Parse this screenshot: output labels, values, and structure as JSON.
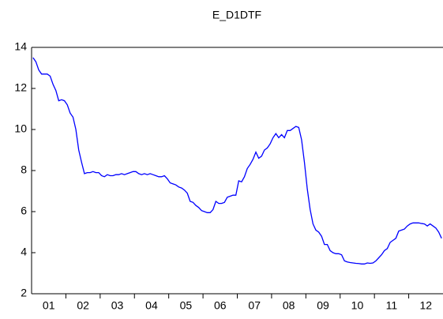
{
  "chart_data": {
    "type": "line",
    "title": "E_D1DTF",
    "categories": [
      null,
      null,
      null,
      null,
      null,
      null,
      "01",
      null,
      null,
      null,
      null,
      null,
      null,
      null,
      null,
      null,
      null,
      null,
      "02",
      null,
      null,
      null,
      null,
      null,
      null,
      null,
      null,
      null,
      null,
      null,
      "03",
      null,
      null,
      null,
      null,
      null,
      null,
      null,
      null,
      null,
      null,
      null,
      "04",
      null,
      null,
      null,
      null,
      null,
      null,
      null,
      null,
      null,
      null,
      null,
      "05",
      null,
      null,
      null,
      null,
      null,
      null,
      null,
      null,
      null,
      null,
      null,
      "06",
      null,
      null,
      null,
      null,
      null,
      null,
      null,
      null,
      null,
      null,
      null,
      "07",
      null,
      null,
      null,
      null,
      null,
      null,
      null,
      null,
      null,
      null,
      null,
      "08",
      null,
      null,
      null,
      null,
      null,
      null,
      null,
      null,
      null,
      null,
      null,
      "09",
      null,
      null,
      null,
      null,
      null,
      null,
      null,
      null,
      null,
      null,
      null,
      "10",
      null,
      null,
      null,
      null,
      null,
      null,
      null,
      null,
      null,
      null,
      null,
      "11",
      null,
      null,
      null,
      null,
      null,
      null,
      null,
      null,
      null,
      null,
      null,
      "12",
      null,
      null,
      null,
      null,
      null
    ],
    "values": [
      13.5,
      13.3,
      12.9,
      12.7,
      12.7,
      12.7,
      12.6,
      12.2,
      11.9,
      11.4,
      11.45,
      11.4,
      11.2,
      10.8,
      10.6,
      10.0,
      9.0,
      8.4,
      7.85,
      7.9,
      7.9,
      7.95,
      7.9,
      7.9,
      7.75,
      7.7,
      7.8,
      7.75,
      7.75,
      7.8,
      7.8,
      7.85,
      7.8,
      7.85,
      7.9,
      7.95,
      7.95,
      7.85,
      7.8,
      7.85,
      7.8,
      7.85,
      7.8,
      7.75,
      7.7,
      7.7,
      7.75,
      7.6,
      7.4,
      7.35,
      7.3,
      7.2,
      7.15,
      7.05,
      6.9,
      6.5,
      6.45,
      6.3,
      6.2,
      6.05,
      6.0,
      5.95,
      5.95,
      6.1,
      6.5,
      6.4,
      6.4,
      6.45,
      6.7,
      6.75,
      6.8,
      6.8,
      7.5,
      7.45,
      7.7,
      8.1,
      8.3,
      8.55,
      8.9,
      8.6,
      8.7,
      9.0,
      9.1,
      9.3,
      9.6,
      9.8,
      9.6,
      9.75,
      9.6,
      9.95,
      9.95,
      10.05,
      10.15,
      10.1,
      9.5,
      8.4,
      7.1,
      6.1,
      5.4,
      5.1,
      5.0,
      4.8,
      4.4,
      4.4,
      4.1,
      4.0,
      3.95,
      3.95,
      3.9,
      3.6,
      3.55,
      3.52,
      3.5,
      3.48,
      3.47,
      3.45,
      3.45,
      3.5,
      3.48,
      3.5,
      3.6,
      3.75,
      3.9,
      4.1,
      4.2,
      4.5,
      4.6,
      4.7,
      5.05,
      5.1,
      5.15,
      5.3,
      5.4,
      5.45,
      5.45,
      5.45,
      5.42,
      5.4,
      5.3,
      5.4,
      5.3,
      5.2,
      5.0,
      4.7
    ],
    "color": "#0000ff",
    "ylim": [
      2,
      14
    ],
    "yticks": [
      2,
      4,
      6,
      8,
      10,
      12,
      14
    ],
    "grid": false
  }
}
